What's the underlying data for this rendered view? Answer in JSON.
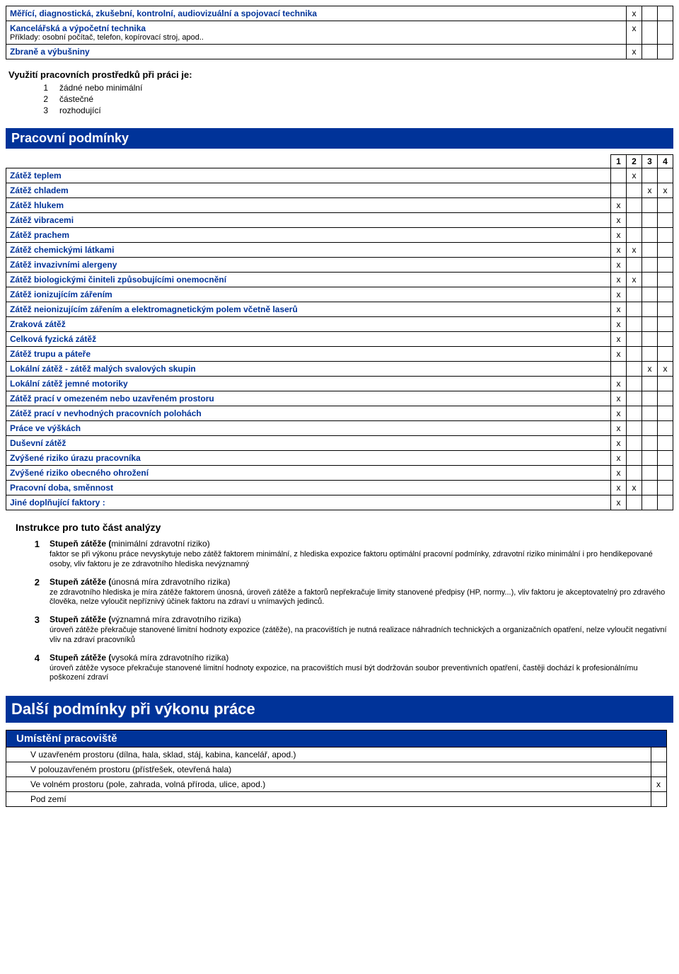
{
  "tools_table": {
    "cell_border_color": "#000000",
    "x_glyph": "x",
    "rows": [
      {
        "label": "Měřící, diagnostická, zkušební, kontrolní, audiovizuální a spojovací technika",
        "sub": "",
        "marks": [
          "x",
          "",
          ""
        ]
      },
      {
        "label": "Kancelářská a výpočetní technika",
        "sub": "Příklady: osobní počítač, telefon, kopírovací stroj, apod..",
        "marks": [
          "x",
          "",
          ""
        ]
      },
      {
        "label": "Zbraně a výbušniny",
        "sub": "",
        "marks": [
          "x",
          "",
          ""
        ]
      }
    ]
  },
  "usage_block": {
    "title": "Využití pracovních prostředků při práci je:",
    "items": [
      {
        "n": "1",
        "text": "žádné nebo minimální"
      },
      {
        "n": "2",
        "text": "částečné"
      },
      {
        "n": "3",
        "text": "rozhodující"
      }
    ]
  },
  "conditions": {
    "banner": "Pracovní podmínky",
    "header": [
      "1",
      "2",
      "3",
      "4"
    ],
    "rows": [
      {
        "label": "Zátěž teplem",
        "marks": [
          "",
          "x",
          "",
          ""
        ]
      },
      {
        "label": "Zátěž chladem",
        "marks": [
          "",
          "",
          "x",
          "x"
        ]
      },
      {
        "label": "Zátěž hlukem",
        "marks": [
          "x",
          "",
          "",
          ""
        ]
      },
      {
        "label": "Zátěž vibracemi",
        "marks": [
          "x",
          "",
          "",
          ""
        ]
      },
      {
        "label": "Zátěž prachem",
        "marks": [
          "x",
          "",
          "",
          ""
        ]
      },
      {
        "label": "Zátěž chemickými látkami",
        "marks": [
          "x",
          "x",
          "",
          ""
        ]
      },
      {
        "label": "Zátěž invazivními alergeny",
        "marks": [
          "x",
          "",
          "",
          ""
        ]
      },
      {
        "label": "Zátěž biologickými činiteli způsobujícími onemocnění",
        "marks": [
          "x",
          "x",
          "",
          ""
        ]
      },
      {
        "label": "Zátěž ionizujícím zářením",
        "marks": [
          "x",
          "",
          "",
          ""
        ]
      },
      {
        "label": "Zátěž neionizujícím zářením a elektromagnetickým polem včetně laserů",
        "marks": [
          "x",
          "",
          "",
          ""
        ]
      },
      {
        "label": "Zraková zátěž",
        "marks": [
          "x",
          "",
          "",
          ""
        ]
      },
      {
        "label": "Celková fyzická zátěž",
        "marks": [
          "x",
          "",
          "",
          ""
        ]
      },
      {
        "label": "Zátěž trupu a páteře",
        "marks": [
          "x",
          "",
          "",
          ""
        ]
      },
      {
        "label": "Lokální zátěž - zátěž  malých svalových skupin",
        "marks": [
          "",
          "",
          "x",
          "x"
        ]
      },
      {
        "label": "Lokální zátěž  jemné motoriky",
        "marks": [
          "x",
          "",
          "",
          ""
        ]
      },
      {
        "label": "Zátěž prací v omezeném nebo uzavřeném prostoru",
        "marks": [
          "x",
          "",
          "",
          ""
        ]
      },
      {
        "label": "Zátěž prací v nevhodných pracovních polohách",
        "marks": [
          "x",
          "",
          "",
          ""
        ]
      },
      {
        "label": "Práce ve výškách",
        "marks": [
          "x",
          "",
          "",
          ""
        ]
      },
      {
        "label": "Duševní zátěž",
        "marks": [
          "x",
          "",
          "",
          ""
        ]
      },
      {
        "label": "Zvýšené riziko úrazu pracovníka",
        "marks": [
          "x",
          "",
          "",
          ""
        ]
      },
      {
        "label": "Zvýšené riziko obecného ohrožení",
        "marks": [
          "x",
          "",
          "",
          ""
        ]
      },
      {
        "label": "Pracovní doba, směnnost",
        "marks": [
          "x",
          "x",
          "",
          ""
        ]
      },
      {
        "label": "Jiné doplňující faktory :",
        "marks": [
          "x",
          "",
          "",
          ""
        ]
      }
    ]
  },
  "instructions": {
    "title": "Instrukce pro tuto část analýzy",
    "items": [
      {
        "n": "1",
        "title_bold": "Stupeň zátěže (",
        "title_paren": "minimální zdravotní riziko)",
        "desc": "faktor se při výkonu práce nevyskytuje nebo zátěž faktorem minimální, z hlediska expozice faktoru optimální pracovní podmínky, zdravotní riziko minimální i pro hendikepované osoby, vliv faktoru je ze zdravotního hlediska nevýznamný"
      },
      {
        "n": "2",
        "title_bold": "Stupeň zátěže (",
        "title_paren": "únosná míra zdravotního rizika)",
        "desc": "ze zdravotního hlediska je míra zátěže faktorem únosná, úroveň zátěže a faktorů nepřekračuje limity stanovené předpisy (HP, normy...), vliv faktoru je akceptovatelný pro zdravého člověka, nelze vyloučit nepříznivý účinek faktoru na zdraví u vnímavých jedinců."
      },
      {
        "n": "3",
        "title_bold": "Stupeň zátěže (",
        "title_paren": "významná míra  zdravotního rizika)",
        "desc": "úroveň zátěže překračuje stanovené limitní hodnoty expozice (zátěže),  na pracovištích je nutná realizace náhradních technických a organizačních opatření, nelze vyloučit negativní vliv na zdraví pracovníků"
      },
      {
        "n": "4",
        "title_bold": "Stupeň zátěže (",
        "title_paren": "vysoká míra zdravotního rizika)",
        "desc": "úroveň zátěže vysoce překračuje stanovené limitní hodnoty expozice, na pracovištích musí být dodržován soubor preventivních opatření, častěji dochází k profesionálnímu poškození zdraví"
      }
    ]
  },
  "further": {
    "banner": "Další podmínky při výkonu práce",
    "sub_banner": "Umístění pracoviště",
    "rows": [
      {
        "label": "V uzavřeném prostoru (dílna, hala, sklad, stáj, kabina, kancelář, apod.)",
        "mark": ""
      },
      {
        "label": "V polouzavřeném prostoru (přístřešek, otevřená hala)",
        "mark": ""
      },
      {
        "label": "Ve volném prostoru (pole, zahrada, volná příroda, ulice, apod.)",
        "mark": "x"
      },
      {
        "label": "Pod zemí",
        "mark": ""
      }
    ]
  }
}
